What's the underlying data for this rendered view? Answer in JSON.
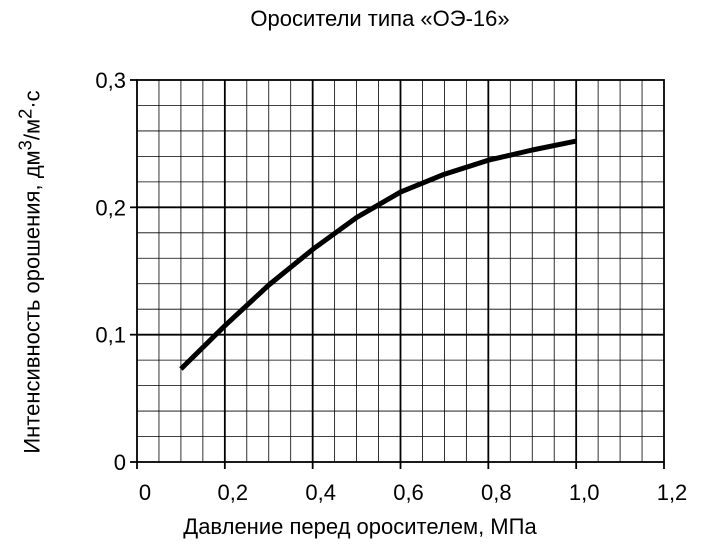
{
  "chart_data": {
    "type": "line",
    "title": "Оросители типа «ОЭ-16»",
    "xlabel": "Давление перед оросителем, МПа",
    "ylabel": "Интенсивность орошения, дм",
    "ylabel_sup": "3",
    "ylabel_tail": "/м",
    "ylabel_sup2": "2",
    "ylabel_end": "·с",
    "xlim": [
      0,
      1.2
    ],
    "ylim": [
      0,
      0.3
    ],
    "x_ticks": [
      "0",
      "0,2",
      "0,4",
      "0,6",
      "0,8",
      "1,0",
      "1,2"
    ],
    "y_ticks": [
      "0",
      "0,1",
      "0,2",
      "0,3"
    ],
    "grid": true,
    "series": [
      {
        "x": [
          0.1,
          0.2,
          0.3,
          0.4,
          0.5,
          0.6,
          0.7,
          0.8,
          0.9,
          1.0
        ],
        "y": [
          0.073,
          0.107,
          0.139,
          0.167,
          0.192,
          0.212,
          0.226,
          0.237,
          0.245,
          0.252
        ],
        "color": "#000000"
      }
    ]
  }
}
